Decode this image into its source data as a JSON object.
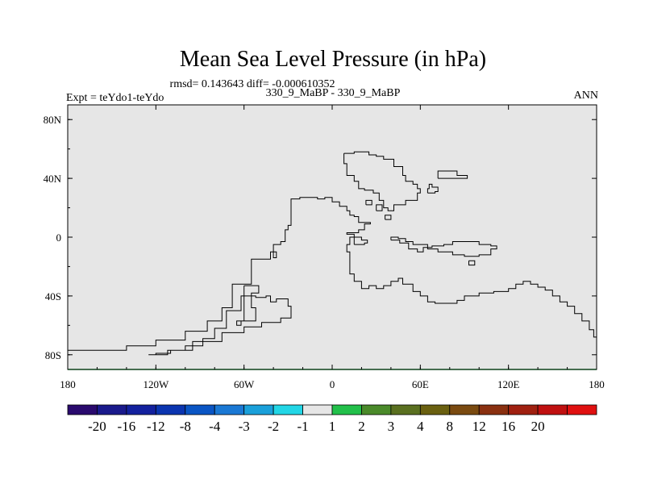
{
  "chart_data": {
    "type": "heatmap",
    "title": "Mean Sea Level Pressure (in hPa)",
    "stats_line": "rmsd= 0.143643 diff= -0.000610352",
    "subtitle": "330_9_MaBP - 330_9_MaBP",
    "left_label": "Expt = teYdo1-teYdo",
    "right_label": "ANN",
    "projection": "cylindrical equidistant",
    "xlim": [
      -180,
      180
    ],
    "ylim": [
      -90,
      90
    ],
    "x_ticks": [
      {
        "value": -180,
        "label": "180"
      },
      {
        "value": -120,
        "label": "120W"
      },
      {
        "value": -60,
        "label": "60W"
      },
      {
        "value": 0,
        "label": "0"
      },
      {
        "value": 60,
        "label": "60E"
      },
      {
        "value": 120,
        "label": "120E"
      },
      {
        "value": 180,
        "label": "180"
      }
    ],
    "y_ticks": [
      {
        "value": 80,
        "label": "80N"
      },
      {
        "value": 40,
        "label": "40N"
      },
      {
        "value": 0,
        "label": "0"
      },
      {
        "value": -40,
        "label": "40S"
      },
      {
        "value": -80,
        "label": "80S"
      }
    ],
    "field_value_class": "-1 to 1",
    "field_color": "#e6e6e6",
    "colorbar": {
      "colors": [
        "#2a0a6e",
        "#1a1a8c",
        "#13219e",
        "#0b35b0",
        "#0a55c4",
        "#1a78d4",
        "#1aa0da",
        "#22d6e6",
        "#e6e6e6",
        "#22c04a",
        "#4a8a2a",
        "#5a7020",
        "#6a6010",
        "#7a4a10",
        "#8a3010",
        "#a02010",
        "#c01010",
        "#e01010"
      ],
      "labels": [
        "-20",
        "-16",
        "-12",
        "-8",
        "-4",
        "-3",
        "-2",
        "-1",
        "1",
        "2",
        "3",
        "4",
        "8",
        "12",
        "16",
        "20"
      ]
    },
    "coastlines": [
      [
        [
          -180,
          -77
        ],
        [
          -160,
          -77
        ],
        [
          -140,
          -74
        ],
        [
          -120,
          -70
        ],
        [
          -100,
          -64
        ],
        [
          -85,
          -57
        ],
        [
          -75,
          -48
        ],
        [
          -68,
          -32
        ],
        [
          -55,
          -15
        ],
        [
          -42,
          -10
        ],
        [
          -38,
          -14
        ],
        [
          -40,
          -5
        ],
        [
          -35,
          -3
        ],
        [
          -32,
          5
        ],
        [
          -30,
          8
        ],
        [
          -28,
          16
        ],
        [
          -28,
          26
        ],
        [
          -22,
          27
        ],
        [
          -10,
          26
        ],
        [
          -5,
          27
        ],
        [
          0,
          24
        ],
        [
          5,
          21
        ],
        [
          10,
          18
        ],
        [
          12,
          15
        ],
        [
          15,
          14
        ],
        [
          18,
          10
        ],
        [
          22,
          10
        ],
        [
          26,
          9
        ],
        [
          22,
          5
        ],
        [
          18,
          3
        ],
        [
          10,
          2
        ],
        [
          15,
          0
        ],
        [
          12,
          -5
        ],
        [
          10,
          -10
        ],
        [
          12,
          -20
        ],
        [
          12,
          -25
        ],
        [
          15,
          -30
        ],
        [
          20,
          -35
        ],
        [
          25,
          -33
        ],
        [
          30,
          -35
        ],
        [
          35,
          -33
        ],
        [
          40,
          -30
        ],
        [
          45,
          -28
        ],
        [
          48,
          -32
        ],
        [
          55,
          -37
        ],
        [
          60,
          -40
        ],
        [
          65,
          -44
        ],
        [
          70,
          -45
        ],
        [
          80,
          -45
        ],
        [
          85,
          -43
        ],
        [
          90,
          -40
        ],
        [
          100,
          -38
        ],
        [
          110,
          -37
        ],
        [
          120,
          -35
        ],
        [
          125,
          -32
        ],
        [
          130,
          -30
        ],
        [
          135,
          -32
        ],
        [
          140,
          -34
        ],
        [
          145,
          -36
        ],
        [
          150,
          -40
        ],
        [
          155,
          -44
        ],
        [
          160,
          -47
        ],
        [
          165,
          -52
        ],
        [
          170,
          -57
        ],
        [
          175,
          -63
        ],
        [
          178,
          -68
        ],
        [
          180,
          -73
        ]
      ],
      [
        [
          -125,
          -80
        ],
        [
          -120,
          -79
        ],
        [
          -110,
          -77
        ],
        [
          -100,
          -74
        ],
        [
          -88,
          -69
        ],
        [
          -80,
          -62
        ],
        [
          -72,
          -50
        ],
        [
          -62,
          -40
        ],
        [
          -52,
          -41
        ],
        [
          -45,
          -40
        ],
        [
          -42,
          -44
        ],
        [
          -38,
          -42
        ],
        [
          -30,
          -47
        ],
        [
          -28,
          -55
        ],
        [
          -35,
          -58
        ],
        [
          -48,
          -61
        ],
        [
          -60,
          -65
        ],
        [
          -75,
          -71
        ],
        [
          -95,
          -77
        ],
        [
          -112,
          -80
        ],
        [
          -125,
          -80
        ]
      ],
      [
        [
          -60,
          -33
        ],
        [
          -55,
          -33
        ],
        [
          -50,
          -38
        ],
        [
          -55,
          -48
        ],
        [
          -52,
          -57
        ],
        [
          -62,
          -60
        ],
        [
          -65,
          -57
        ],
        [
          -60,
          -33
        ]
      ],
      [
        [
          8,
          57
        ],
        [
          15,
          58
        ],
        [
          25,
          56
        ],
        [
          30,
          55
        ],
        [
          35,
          53
        ],
        [
          42,
          48
        ],
        [
          48,
          42
        ],
        [
          50,
          38
        ],
        [
          55,
          36
        ],
        [
          58,
          33
        ],
        [
          60,
          30
        ],
        [
          58,
          25
        ],
        [
          50,
          22
        ],
        [
          42,
          18
        ],
        [
          38,
          20
        ],
        [
          35,
          25
        ],
        [
          32,
          30
        ],
        [
          28,
          32
        ],
        [
          22,
          33
        ],
        [
          18,
          38
        ],
        [
          15,
          42
        ],
        [
          10,
          50
        ],
        [
          8,
          57
        ]
      ],
      [
        [
          65,
          30
        ],
        [
          70,
          31
        ],
        [
          72,
          34
        ],
        [
          68,
          36
        ],
        [
          66,
          33
        ],
        [
          65,
          30
        ]
      ],
      [
        [
          72,
          40
        ],
        [
          88,
          40
        ],
        [
          92,
          42
        ],
        [
          85,
          45
        ],
        [
          72,
          44
        ],
        [
          72,
          40
        ]
      ],
      [
        [
          40,
          -2
        ],
        [
          46,
          -4
        ],
        [
          52,
          -8
        ],
        [
          58,
          -10
        ],
        [
          62,
          -7
        ],
        [
          68,
          -6
        ],
        [
          76,
          -5
        ],
        [
          82,
          -3
        ],
        [
          90,
          -3
        ],
        [
          100,
          -5
        ],
        [
          108,
          -6
        ],
        [
          112,
          -8
        ],
        [
          108,
          -12
        ],
        [
          100,
          -13
        ],
        [
          90,
          -12
        ],
        [
          82,
          -10
        ],
        [
          72,
          -8
        ],
        [
          65,
          -5
        ],
        [
          55,
          -3
        ],
        [
          50,
          -1
        ],
        [
          45,
          0
        ],
        [
          40,
          -2
        ]
      ],
      [
        [
          15,
          -5
        ],
        [
          22,
          -4
        ],
        [
          24,
          -2
        ],
        [
          20,
          0
        ],
        [
          15,
          -2
        ],
        [
          15,
          -5
        ]
      ],
      [
        [
          23,
          22
        ],
        [
          27,
          22
        ],
        [
          27,
          25
        ],
        [
          23,
          25
        ],
        [
          23,
          22
        ]
      ],
      [
        [
          30,
          18
        ],
        [
          34,
          18
        ],
        [
          34,
          22
        ],
        [
          30,
          22
        ],
        [
          30,
          18
        ]
      ],
      [
        [
          36,
          12
        ],
        [
          40,
          12
        ],
        [
          40,
          15
        ],
        [
          36,
          15
        ],
        [
          36,
          12
        ]
      ],
      [
        [
          93,
          -16
        ],
        [
          97,
          -16
        ],
        [
          97,
          -19
        ],
        [
          93,
          -19
        ],
        [
          93,
          -16
        ]
      ]
    ]
  }
}
